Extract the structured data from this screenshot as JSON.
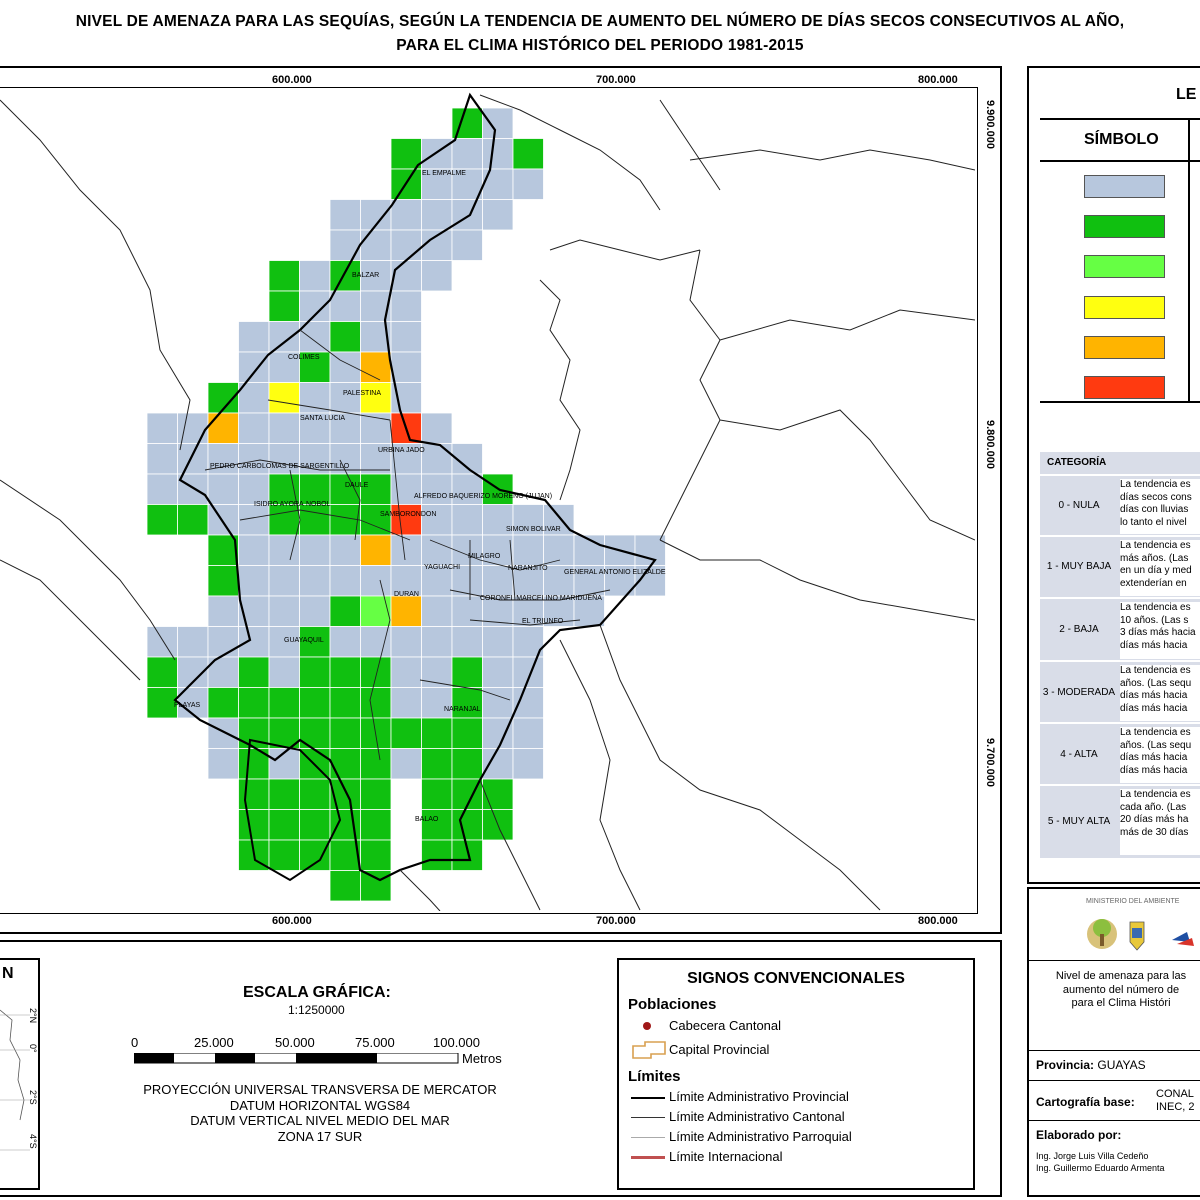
{
  "title": {
    "line1": "NIVEL DE AMENAZA PARA LAS SEQUÍAS, SEGÚN LA TENDENCIA DE AUMENTO DEL NÚMERO DE DÍAS SECOS CONSECUTIVOS AL AÑO,",
    "line2": "PARA EL CLIMA HISTÓRICO DEL PERIODO 1981-2015"
  },
  "map": {
    "x_ticks": [
      "600.000",
      "700.000",
      "800.000"
    ],
    "y_ticks": [
      "9.900.000",
      "9.800.000",
      "9.700.000"
    ],
    "places": [
      "EL EMPALME",
      "BALZAR",
      "COLIMES",
      "PALESTINA",
      "SANTA LUCIA",
      "URBINA JADO",
      "PEDRO CARBO",
      "LOMAS DE SARGENTILLO",
      "ISIDRO AYORA",
      "NOBOL",
      "DAULE",
      "ALFREDO BAQUERIZO MORENO (JUJAN)",
      "SAMBORONDON",
      "SIMON BOLIVAR",
      "MILAGRO",
      "YAGUACHI",
      "NARANJITO",
      "GENERAL ANTONIO ELIZALDE",
      "DURAN",
      "CORONEL MARCELINO MARIDUEÑA",
      "EL TRIUNFO",
      "GUAYAQUIL",
      "PLAYAS",
      "NARANJAL",
      "BALAO"
    ],
    "colors": {
      "nula": "#b7c7dd",
      "muy_baja": "#10c010",
      "baja": "#66ff44",
      "moderada": "#ffff10",
      "alta": "#ffb400",
      "muy_alta": "#ff3a10"
    }
  },
  "legend": {
    "title": "LE",
    "symbol_header": "SÍMBOLO",
    "category_header": "CATEGORÍA",
    "categories": [
      {
        "name": "0 - NULA",
        "desc": [
          "La tendencia es",
          "días secos cons",
          "días con lluvias",
          "lo tanto el nivel"
        ]
      },
      {
        "name": "1 - MUY BAJA",
        "desc": [
          "La tendencia es",
          "más años. (Las",
          "en un día y med",
          "extenderían en"
        ]
      },
      {
        "name": "2 - BAJA",
        "desc": [
          "La tendencia es",
          "10 años. (Las s",
          "3 días más hacia",
          "días más hacia"
        ]
      },
      {
        "name": "3 - MODERADA",
        "desc": [
          "La tendencia es",
          "años. (Las sequ",
          "días más hacia",
          "días más hacia"
        ]
      },
      {
        "name": "4 - ALTA",
        "desc": [
          "La tendencia es",
          "años. (Las sequ",
          "días más hacia",
          "días más hacia"
        ]
      },
      {
        "name": "5 - MUY ALTA",
        "desc": [
          "La tendencia es",
          "cada año. (Las",
          "20 días más ha",
          "más de 30 días"
        ]
      }
    ]
  },
  "info": {
    "ministry": "MINISTERIO DEL AMBIENTE",
    "desc": [
      "Nivel de amenaza para las",
      "aumento del número de",
      "para el Clima Históri"
    ],
    "province_label": "Provincia:",
    "province_value": "GUAYAS",
    "cartography_label": "Cartografía base:",
    "cartography_value": [
      "CONAL",
      "INEC, 2"
    ],
    "author_label": "Elaborado por:",
    "authors": [
      "Ing. Jorge Luis Villa Cedeño",
      "Ing. Guillermo Eduardo Armenta"
    ]
  },
  "scale": {
    "title": "ESCALA GRÁFICA:",
    "ratio": "1:1250000",
    "labels": [
      "0",
      "25.000",
      "50.000",
      "75.000",
      "100.000"
    ],
    "unit": "Metros",
    "projection": [
      "PROYECCIÓN UNIVERSAL TRANSVERSA DE MERCATOR",
      "DATUM HORIZONTAL WGS84",
      "DATUM VERTICAL NIVEL MEDIO DEL MAR",
      "ZONA 17 SUR"
    ]
  },
  "signs": {
    "title": "SIGNOS CONVENCIONALES",
    "populations_header": "Poblaciones",
    "cabecera": "Cabecera Cantonal",
    "capital": "Capital Provincial",
    "limits_header": "Límites",
    "limits": [
      "Límite Administrativo Provincial",
      "Límite Administrativo Cantonal",
      "Límite Administrativo Parroquial",
      "Límite Internacional"
    ]
  },
  "inset": {
    "title": "N",
    "lat_labels": [
      "2°N",
      "0°",
      "2°S",
      "4°S"
    ]
  }
}
